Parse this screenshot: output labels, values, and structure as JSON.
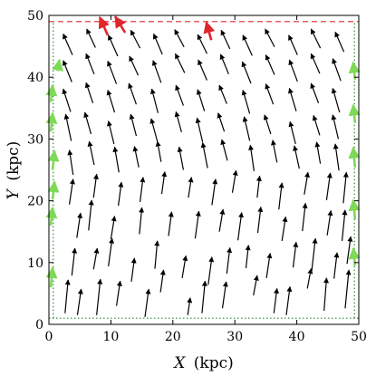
{
  "chart_data": {
    "type": "quiver",
    "xlabel_var": "X",
    "xlabel_unit": "(kpc)",
    "ylabel_var": "Y",
    "ylabel_unit": "(kpc)",
    "xlim": [
      0,
      50
    ],
    "ylim": [
      0,
      50
    ],
    "xticks": [
      0,
      10,
      20,
      30,
      40,
      50
    ],
    "yticks": [
      0,
      10,
      20,
      30,
      40,
      50
    ],
    "grid": false,
    "boundary_lines": [
      {
        "name": "top boundary",
        "style": "dashed",
        "color": "#e0262b",
        "y": 49
      },
      {
        "name": "left boundary",
        "style": "dotted",
        "color": "#2a8a2a",
        "x": 0.7
      },
      {
        "name": "right boundary",
        "style": "dotted",
        "color": "#2a8a2a",
        "x": 49.3
      },
      {
        "name": "bottom boundary",
        "style": "dotted",
        "color": "#2a8a2a",
        "y": 1
      }
    ],
    "series": [
      {
        "color": "#000000",
        "arrows": [
          [
            2.6,
            1.8,
            0.5,
            5.4
          ],
          [
            4.6,
            1.5,
            0.6,
            4.2
          ],
          [
            7.7,
            1.5,
            0.6,
            5.8
          ],
          [
            10.9,
            3.0,
            0.6,
            4.0
          ],
          [
            15.5,
            1.2,
            0.6,
            4.5
          ],
          [
            18.0,
            5.2,
            0.5,
            3.6
          ],
          [
            22.4,
            1.5,
            0.4,
            2.8
          ],
          [
            24.7,
            1.8,
            0.5,
            5.2
          ],
          [
            28.0,
            2.6,
            0.6,
            4.3
          ],
          [
            33.0,
            4.7,
            0.6,
            3.2
          ],
          [
            36.3,
            1.8,
            0.5,
            4.0
          ],
          [
            38.3,
            1.5,
            0.6,
            4.6
          ],
          [
            41.7,
            5.8,
            0.6,
            3.2
          ],
          [
            44.4,
            2.2,
            0.4,
            5.3
          ],
          [
            47.8,
            2.6,
            0.6,
            6.2
          ],
          [
            3.7,
            7.9,
            0.5,
            4.4
          ],
          [
            7.2,
            8.9,
            0.6,
            3.4
          ],
          [
            9.6,
            9.4,
            0.6,
            4.5
          ],
          [
            13.3,
            6.9,
            0.5,
            3.8
          ],
          [
            17.1,
            9.0,
            0.4,
            4.5
          ],
          [
            21.5,
            7.5,
            0.6,
            3.6
          ],
          [
            25.7,
            6.4,
            0.6,
            4.5
          ],
          [
            28.7,
            8.2,
            0.5,
            4.2
          ],
          [
            31.8,
            9.1,
            0.4,
            3.7
          ],
          [
            35.1,
            7.5,
            0.6,
            4.0
          ],
          [
            39.4,
            9.2,
            0.5,
            4.1
          ],
          [
            42.4,
            8.6,
            0.6,
            5.3
          ],
          [
            46.0,
            7.4,
            0.5,
            4.2
          ],
          [
            48.1,
            9.8,
            0.6,
            4.4
          ],
          [
            4.5,
            14.0,
            0.6,
            4.0
          ],
          [
            6.4,
            15.2,
            0.5,
            4.9
          ],
          [
            10.0,
            13.8,
            0.6,
            3.7
          ],
          [
            14.6,
            14.6,
            0.4,
            4.3
          ],
          [
            19.3,
            14.3,
            0.5,
            3.9
          ],
          [
            23.6,
            13.9,
            0.6,
            4.4
          ],
          [
            27.5,
            15.0,
            0.6,
            3.6
          ],
          [
            30.5,
            13.6,
            0.6,
            4.5
          ],
          [
            33.7,
            14.8,
            0.5,
            4.2
          ],
          [
            37.6,
            13.5,
            0.6,
            3.9
          ],
          [
            40.9,
            15.1,
            0.5,
            4.5
          ],
          [
            44.9,
            14.4,
            0.6,
            4.0
          ],
          [
            47.3,
            13.5,
            0.5,
            5.0
          ],
          [
            3.3,
            19.4,
            0.6,
            4.1
          ],
          [
            7.2,
            20.5,
            0.5,
            3.8
          ],
          [
            11.2,
            19.2,
            0.5,
            3.8
          ],
          [
            14.7,
            19.8,
            0.5,
            4.0
          ],
          [
            18.2,
            21.1,
            0.5,
            3.6
          ],
          [
            22.5,
            20.5,
            0.5,
            3.3
          ],
          [
            26.3,
            19.3,
            0.6,
            4.2
          ],
          [
            29.6,
            21.3,
            0.6,
            3.6
          ],
          [
            33.6,
            20.5,
            0.4,
            3.5
          ],
          [
            37.1,
            18.6,
            0.5,
            4.3
          ],
          [
            41.2,
            21.0,
            0.6,
            3.6
          ],
          [
            44.8,
            20.1,
            0.6,
            4.4
          ],
          [
            47.5,
            19.6,
            0.5,
            5.0
          ],
          [
            3.9,
            24.2,
            -0.6,
            4.0
          ],
          [
            7.3,
            25.8,
            -0.8,
            3.8
          ],
          [
            11.3,
            24.6,
            -0.7,
            4.1
          ],
          [
            14.5,
            25.4,
            -0.7,
            3.4
          ],
          [
            18.1,
            26.3,
            -0.6,
            3.3
          ],
          [
            21.7,
            25.0,
            -0.7,
            3.7
          ],
          [
            25.6,
            25.3,
            -0.8,
            4.1
          ],
          [
            28.8,
            26.5,
            -0.9,
            3.4
          ],
          [
            33.1,
            24.8,
            -0.6,
            4.2
          ],
          [
            36.8,
            26.2,
            -0.7,
            3.6
          ],
          [
            40.4,
            25.2,
            -0.8,
            3.7
          ],
          [
            43.8,
            26.0,
            -0.6,
            3.5
          ],
          [
            46.8,
            24.9,
            -0.6,
            4.3
          ],
          [
            3.6,
            29.7,
            -0.9,
            4.3
          ],
          [
            6.8,
            30.8,
            -1.0,
            3.5
          ],
          [
            10.5,
            29.2,
            -0.9,
            3.7
          ],
          [
            14.1,
            30.5,
            -0.9,
            3.5
          ],
          [
            17.5,
            29.6,
            -1.0,
            3.7
          ],
          [
            21.4,
            31.1,
            -0.9,
            3.3
          ],
          [
            24.8,
            29.5,
            -0.9,
            3.9
          ],
          [
            28.3,
            31.2,
            -1.0,
            3.0
          ],
          [
            32.4,
            29.7,
            -0.9,
            3.9
          ],
          [
            35.8,
            30.8,
            -1.0,
            3.1
          ],
          [
            39.8,
            29.2,
            -0.9,
            3.6
          ],
          [
            43.7,
            30.6,
            -1.0,
            3.2
          ],
          [
            46.7,
            30.0,
            -0.9,
            3.9
          ],
          [
            3.5,
            34.4,
            -1.2,
            3.7
          ],
          [
            7.1,
            35.8,
            -1.1,
            3.3
          ],
          [
            10.6,
            34.3,
            -1.1,
            3.6
          ],
          [
            14.1,
            35.6,
            -1.2,
            3.4
          ],
          [
            17.6,
            34.2,
            -1.0,
            3.9
          ],
          [
            21.7,
            35.4,
            -1.2,
            3.3
          ],
          [
            25.1,
            34.5,
            -1.1,
            3.5
          ],
          [
            28.7,
            35.7,
            -1.2,
            3.0
          ],
          [
            32.4,
            34.1,
            -1.1,
            3.8
          ],
          [
            36.2,
            35.6,
            -1.2,
            3.3
          ],
          [
            39.9,
            34.5,
            -1.1,
            3.7
          ],
          [
            43.5,
            35.8,
            -1.2,
            3.2
          ],
          [
            46.9,
            34.3,
            -1.1,
            3.9
          ],
          [
            3.7,
            39.2,
            -1.4,
            3.5
          ],
          [
            7.3,
            40.5,
            -1.3,
            3.3
          ],
          [
            10.9,
            38.9,
            -1.4,
            3.7
          ],
          [
            14.4,
            40.3,
            -1.4,
            3.1
          ],
          [
            18.1,
            39.1,
            -1.3,
            3.6
          ],
          [
            21.9,
            40.7,
            -1.5,
            3.1
          ],
          [
            25.5,
            39.5,
            -1.4,
            3.3
          ],
          [
            29.0,
            40.5,
            -1.3,
            3.2
          ],
          [
            32.6,
            39.0,
            -1.4,
            3.5
          ],
          [
            36.4,
            40.4,
            -1.4,
            3.2
          ],
          [
            40.1,
            39.3,
            -1.3,
            3.5
          ],
          [
            43.7,
            40.6,
            -1.4,
            3.2
          ],
          [
            47.1,
            39.4,
            -1.3,
            3.6
          ],
          [
            3.8,
            43.6,
            -1.5,
            3.4
          ],
          [
            7.5,
            44.8,
            -1.4,
            3.0
          ],
          [
            11.1,
            43.4,
            -1.5,
            3.4
          ],
          [
            14.7,
            44.7,
            -1.5,
            2.9
          ],
          [
            18.3,
            43.7,
            -1.4,
            3.3
          ],
          [
            21.8,
            44.9,
            -1.5,
            2.8
          ],
          [
            25.5,
            43.8,
            -1.5,
            3.1
          ],
          [
            29.2,
            44.6,
            -1.4,
            3.0
          ],
          [
            32.8,
            43.5,
            -1.5,
            3.3
          ],
          [
            36.4,
            44.9,
            -1.5,
            2.9
          ],
          [
            40.1,
            43.6,
            -1.4,
            3.2
          ],
          [
            43.8,
            44.7,
            -1.5,
            3.1
          ],
          [
            47.6,
            44.1,
            -1.4,
            3.2
          ]
        ]
      },
      {
        "color": "#e0262b",
        "arrows": [
          [
            9.5,
            46.8,
            -1.3,
            2.9
          ],
          [
            12.3,
            47.2,
            -1.6,
            2.6
          ],
          [
            26.2,
            46.0,
            -0.8,
            2.9
          ]
        ]
      },
      {
        "color": "#7ed957",
        "arrows": [
          [
            0.3,
            6.0,
            0.3,
            3.2
          ],
          [
            0.3,
            16.0,
            0.3,
            2.9
          ],
          [
            0.6,
            20.2,
            0.3,
            2.9
          ],
          [
            0.6,
            25.0,
            0.3,
            3.1
          ],
          [
            0.3,
            31.2,
            0.3,
            3.0
          ],
          [
            0.3,
            36.0,
            0.3,
            2.7
          ],
          [
            1.4,
            41.0,
            0.3,
            1.8
          ],
          [
            49.4,
            9.5,
            -0.3,
            2.8
          ],
          [
            49.4,
            17.0,
            -0.3,
            3.1
          ],
          [
            49.4,
            25.4,
            -0.3,
            3.2
          ],
          [
            49.4,
            32.6,
            -0.3,
            2.9
          ],
          [
            49.4,
            39.6,
            -0.3,
            2.8
          ]
        ]
      }
    ]
  }
}
